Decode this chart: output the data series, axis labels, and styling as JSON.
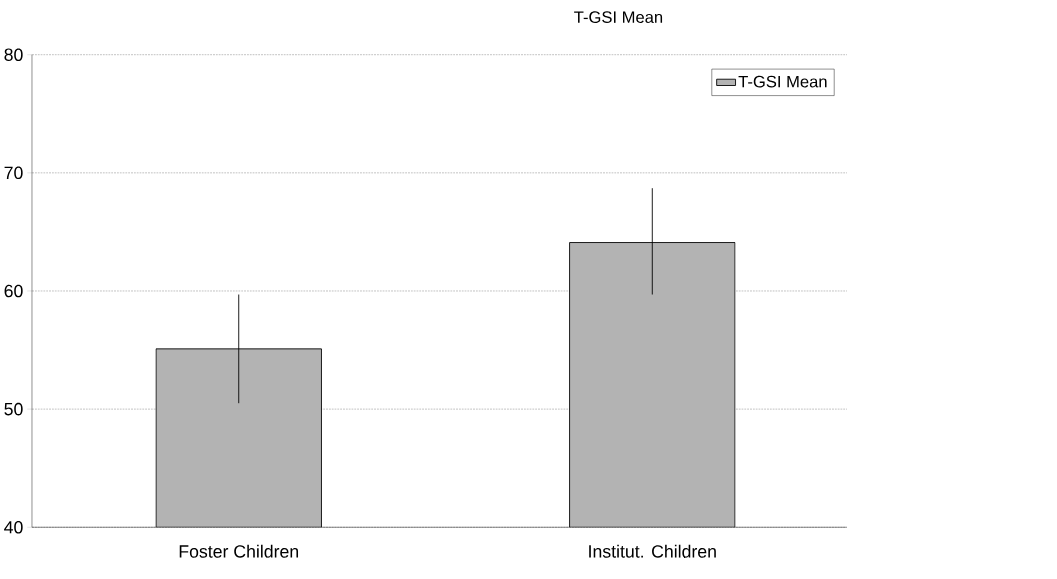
{
  "chart_data": {
    "type": "bar",
    "title": "T-GSI Mean",
    "categories": [
      "Foster Children",
      "Institut. Children"
    ],
    "series": [
      {
        "name": "T-GSI Mean",
        "color": "#b3b3b3",
        "values": [
          55.1,
          64.1
        ],
        "errors": [
          [
            50.5,
            59.7
          ],
          [
            59.7,
            68.7
          ]
        ]
      }
    ],
    "ylim": [
      40,
      80
    ],
    "yticks": [
      40,
      50,
      60,
      70,
      80
    ],
    "grid": "y",
    "legend": "top right"
  }
}
